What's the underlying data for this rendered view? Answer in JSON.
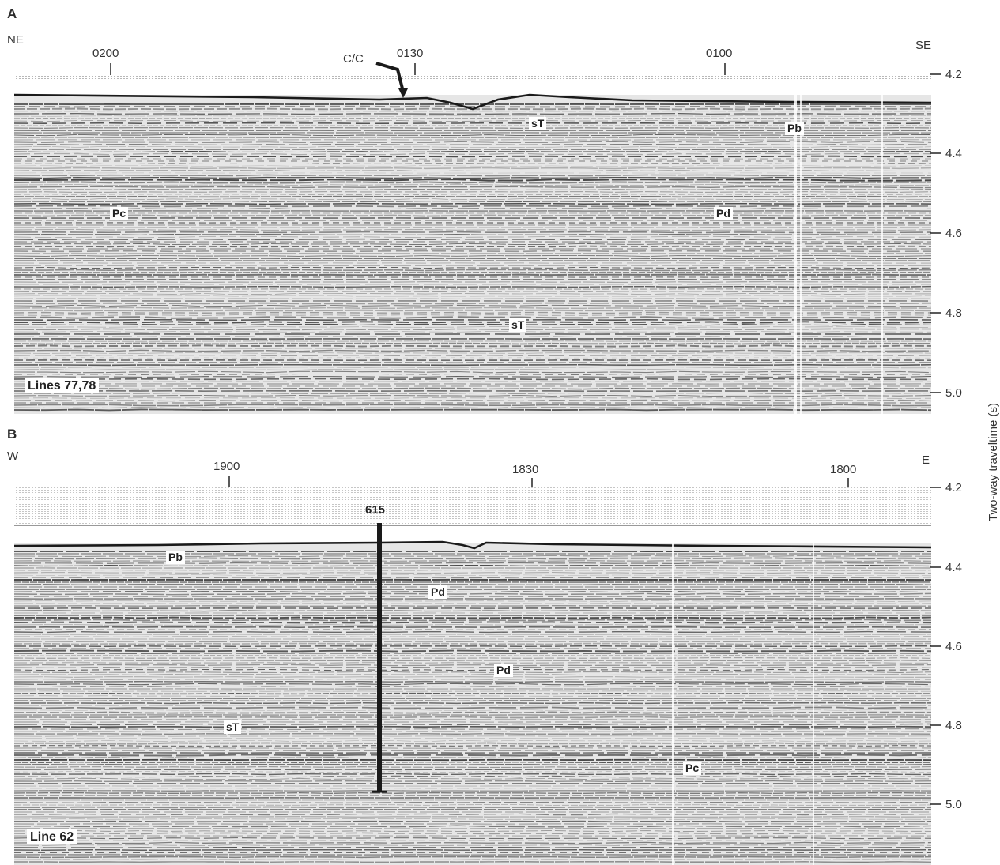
{
  "y_axis_label": "Two-way traveltime (s)",
  "colors": {
    "ink": "#2a2a2a",
    "paper": "#ffffff"
  },
  "panels": [
    {
      "id": "A",
      "letter": "A",
      "left_direction": "NE",
      "right_direction": "SE",
      "time_labels": [
        "4.2",
        "4.4",
        "4.6",
        "4.8",
        "5.0"
      ],
      "shotpoints": [
        "0200",
        "0130",
        "0100"
      ],
      "marker": "C/C",
      "line_name": "Lines 77,78",
      "horizons": [
        "sT",
        "Pb",
        "Pc",
        "Pd",
        "sT"
      ]
    },
    {
      "id": "B",
      "letter": "B",
      "left_direction": "W",
      "right_direction": "E",
      "time_labels": [
        "4.2",
        "4.4",
        "4.6",
        "4.8",
        "5.0"
      ],
      "shotpoints": [
        "1900",
        "1830",
        "1800"
      ],
      "site": "615",
      "line_name": "Line 62",
      "horizons": [
        "Pb",
        "Pd",
        "Pd",
        "sT",
        "Pc"
      ]
    }
  ]
}
